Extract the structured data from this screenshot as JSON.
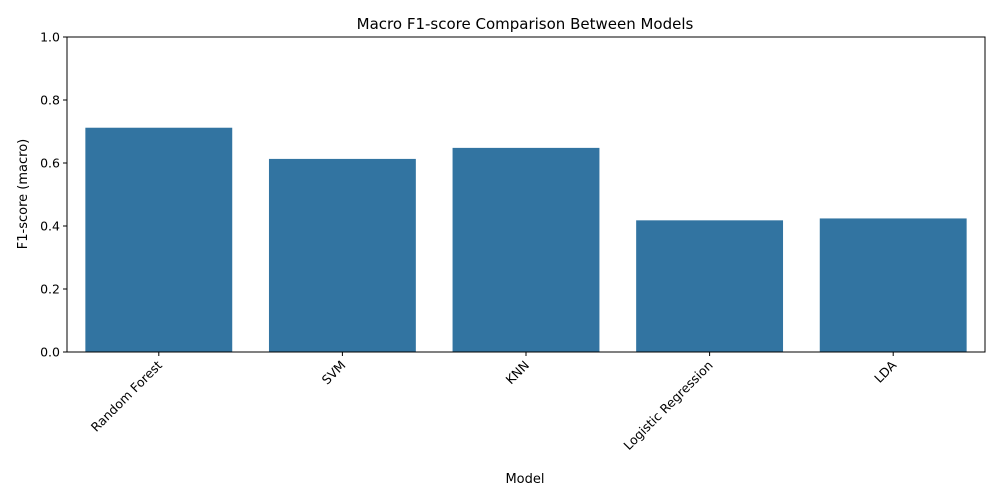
{
  "chart_data": {
    "type": "bar",
    "title": "Macro F1-score Comparison Between Models",
    "xlabel": "Model",
    "ylabel": "F1-score (macro)",
    "categories": [
      "Random Forest",
      "SVM",
      "KNN",
      "Logistic Regression",
      "LDA"
    ],
    "values": [
      0.712,
      0.613,
      0.648,
      0.418,
      0.424
    ],
    "ylim": [
      0,
      1.0
    ],
    "yticks": [
      0.0,
      0.2,
      0.4,
      0.6,
      0.8,
      1.0
    ],
    "ytick_labels": [
      "0.0",
      "0.2",
      "0.4",
      "0.6",
      "0.8",
      "1.0"
    ],
    "grid": false,
    "bar_color": "#3274a1",
    "xtick_rotation_deg": 45
  }
}
